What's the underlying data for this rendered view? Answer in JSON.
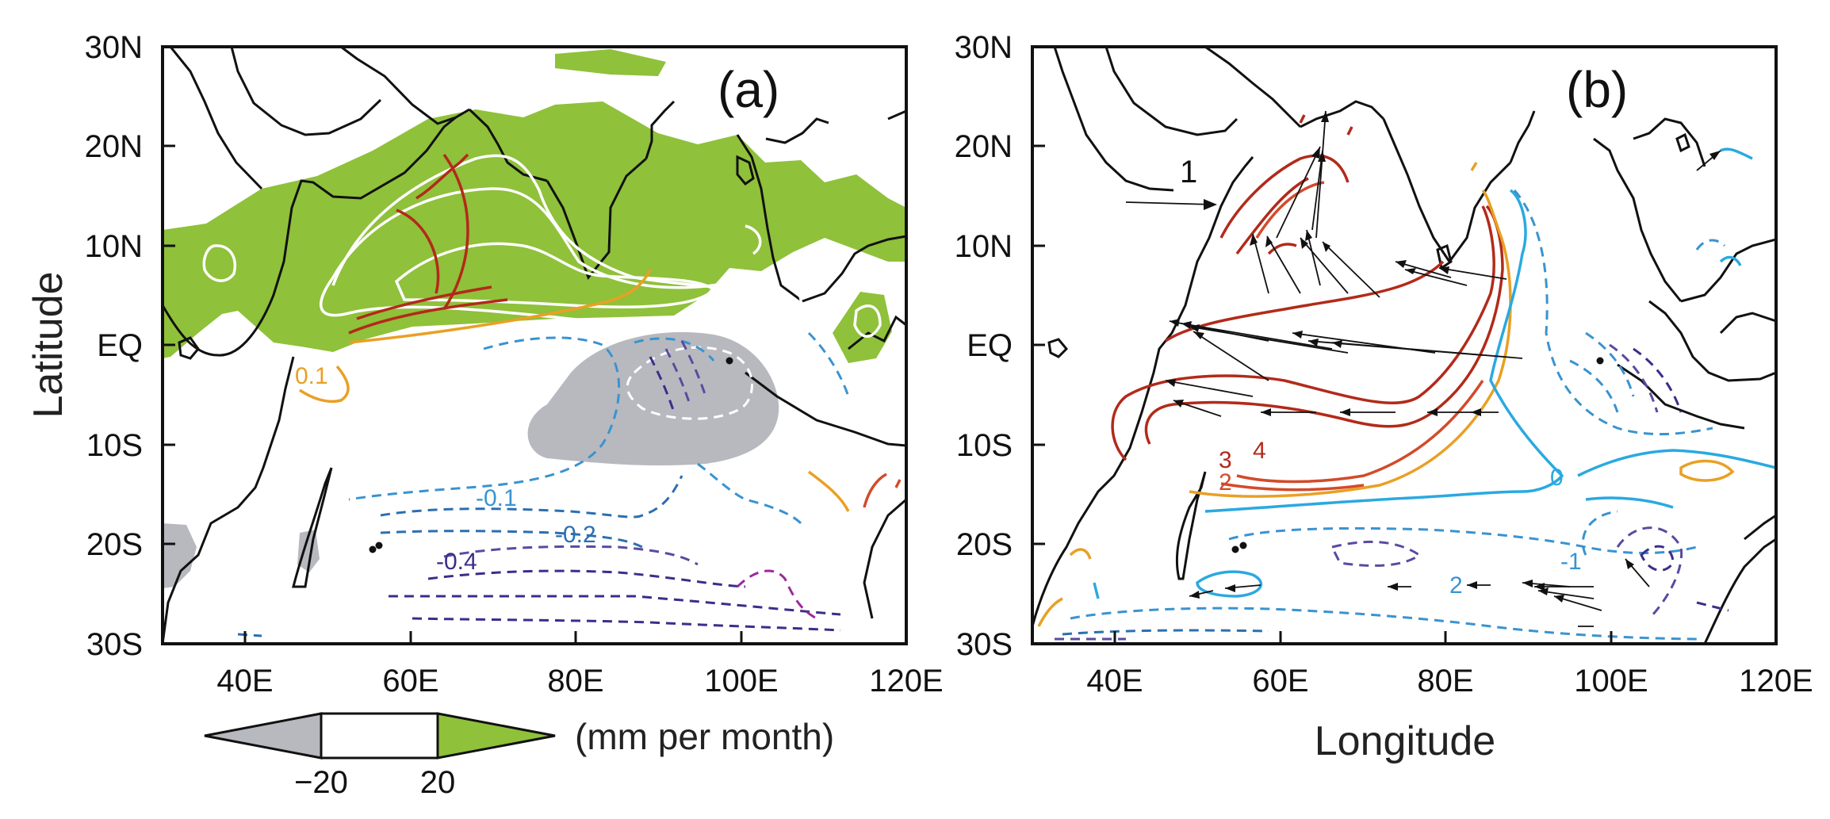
{
  "figure": {
    "colorbar": {
      "ticks": [
        "−20",
        "20"
      ],
      "unit_label": "(mm per month)",
      "colors": {
        "low": "#b7b9bf",
        "mid": "#ffffff",
        "high": "#8fc13a"
      }
    }
  },
  "chart_data": [
    {
      "type": "heatmap",
      "panel_label": "(a)",
      "ylabel": "Latitude",
      "xlabel": "",
      "x_ticks": [
        "40E",
        "60E",
        "80E",
        "100E",
        "120E"
      ],
      "y_ticks": [
        "30N",
        "20N",
        "10N",
        "EQ",
        "10S",
        "20S",
        "30S"
      ],
      "xlim": [
        30,
        120
      ],
      "ylim": [
        -30,
        30
      ],
      "contour_labels": [
        "0.1",
        "-0.1",
        "-0.2",
        "-0.4"
      ],
      "shading_levels": [
        -20,
        20
      ]
    },
    {
      "type": "heatmap",
      "panel_label": "(b)",
      "xlabel": "Longitude",
      "ylabel": "",
      "x_ticks": [
        "40E",
        "60E",
        "80E",
        "100E",
        "120E"
      ],
      "y_ticks": [
        "30N",
        "20N",
        "10N",
        "EQ",
        "10S",
        "20S",
        "30S"
      ],
      "xlim": [
        30,
        120
      ],
      "ylim": [
        -30,
        30
      ],
      "contour_labels": [
        "3",
        "4",
        "2",
        "0",
        "-1",
        "2"
      ],
      "reference_vector": "1"
    }
  ]
}
